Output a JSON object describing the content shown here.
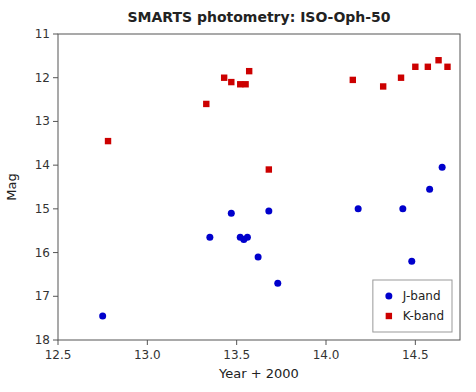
{
  "chart_data": {
    "type": "scatter",
    "title": "SMARTS photometry: ISO-Oph-50",
    "x_label": "Year + 2000",
    "y_label": "Mag",
    "xlim": [
      12.5,
      14.75
    ],
    "ylim": [
      18,
      11
    ],
    "xticks": [
      12.5,
      {
        "value": 13.0,
        "label": "13.0"
      },
      13.5,
      {
        "value": 14.0,
        "label": "14.0"
      },
      14.5
    ],
    "yticks": [
      11,
      12,
      13,
      14,
      15,
      16,
      17,
      18
    ],
    "grid": false,
    "legend": "lower right",
    "series": [
      {
        "name": "J-band",
        "color": "#0000cc",
        "marker": "circle",
        "x": [
          12.75,
          13.35,
          13.47,
          13.52,
          13.54,
          13.56,
          13.62,
          13.68,
          13.73,
          14.18,
          14.43,
          14.48,
          14.58,
          14.65
        ],
        "values": [
          17.45,
          15.65,
          15.1,
          15.65,
          15.7,
          15.65,
          16.1,
          15.05,
          16.7,
          15.0,
          15.0,
          16.2,
          14.55,
          14.05
        ]
      },
      {
        "name": "K-band",
        "color": "#cc0000",
        "marker": "square",
        "x": [
          12.78,
          13.33,
          13.43,
          13.47,
          13.52,
          13.55,
          13.57,
          13.68,
          14.15,
          14.32,
          14.42,
          14.5,
          14.57,
          14.63,
          14.68
        ],
        "values": [
          13.45,
          12.6,
          12.0,
          12.1,
          12.15,
          12.15,
          11.85,
          14.1,
          12.05,
          12.2,
          12.0,
          11.75,
          11.75,
          11.6,
          11.75
        ]
      }
    ]
  }
}
